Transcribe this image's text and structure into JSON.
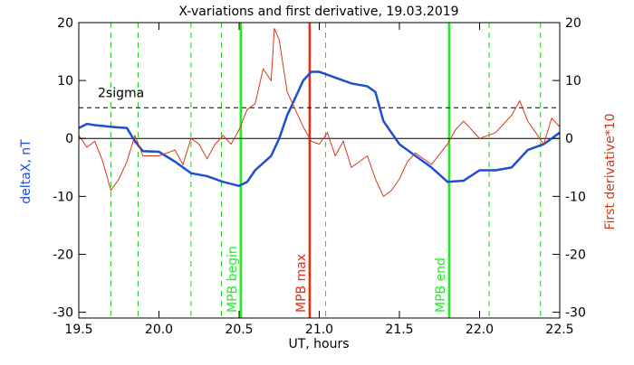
{
  "chart_data": {
    "type": "line",
    "title": "X-variations and first derivative, 19.03.2019",
    "xlabel": "UT, hours",
    "ylabel": "deltaX, nT",
    "y2label": "First derivative*10",
    "xlim": [
      19.5,
      22.5
    ],
    "xticks": [
      19.5,
      {
        "value": 20,
        "label": "20.0"
      },
      20.5,
      {
        "value": 21,
        "label": "21.0"
      },
      21.5,
      {
        "value": 22,
        "label": "22.0"
      },
      22.5
    ],
    "ylim": [
      -31,
      20
    ],
    "yticks": [
      -30,
      -20,
      -10,
      0,
      10,
      20
    ],
    "y2lim": [
      -31,
      20
    ],
    "y2ticks": [
      -30,
      -20,
      -10,
      0,
      10,
      20
    ],
    "series": [
      {
        "name": "deltaX, nT",
        "color": "#1f4fd0",
        "x": [
          19.5,
          19.55,
          19.6,
          19.7,
          19.8,
          19.85,
          19.9,
          20.0,
          20.1,
          20.2,
          20.3,
          20.4,
          20.5,
          20.55,
          20.6,
          20.7,
          20.75,
          20.8,
          20.85,
          20.9,
          20.95,
          21.0,
          21.1,
          21.2,
          21.3,
          21.35,
          21.4,
          21.5,
          21.6,
          21.7,
          21.8,
          21.9,
          22.0,
          22.1,
          22.2,
          22.3,
          22.4,
          22.5
        ],
        "values": [
          1.8,
          2.5,
          2.3,
          2,
          1.8,
          -0.5,
          -2.2,
          -2.3,
          -4,
          -6,
          -6.5,
          -7.5,
          -8.2,
          -7.5,
          -5.5,
          -3,
          0,
          4,
          7,
          10,
          11.5,
          11.5,
          10.5,
          9.5,
          9,
          8,
          3,
          -1,
          -3,
          -5,
          -7.5,
          -7.3,
          -5.5,
          -5.5,
          -5,
          -2,
          -1,
          1
        ]
      },
      {
        "name": "First derivative*10",
        "color": "#d03a1a",
        "axis": "y2",
        "x": [
          19.5,
          19.55,
          19.6,
          19.65,
          19.7,
          19.75,
          19.8,
          19.85,
          19.9,
          20.0,
          20.1,
          20.15,
          20.2,
          20.25,
          20.3,
          20.35,
          20.4,
          20.45,
          20.5,
          20.55,
          20.6,
          20.65,
          20.7,
          20.72,
          20.75,
          20.8,
          20.85,
          20.9,
          20.95,
          21.0,
          21.05,
          21.1,
          21.15,
          21.2,
          21.3,
          21.35,
          21.4,
          21.45,
          21.5,
          21.55,
          21.6,
          21.7,
          21.8,
          21.85,
          21.9,
          22.0,
          22.1,
          22.2,
          22.25,
          22.3,
          22.35,
          22.4,
          22.45,
          22.5
        ],
        "values": [
          0.5,
          -1.5,
          -0.5,
          -4,
          -9,
          -7,
          -4,
          0.5,
          -3,
          -3,
          -2,
          -4.5,
          0,
          -1,
          -3.5,
          -1,
          0.5,
          -1,
          1.5,
          5,
          6,
          12,
          10,
          19,
          17,
          8,
          5,
          2,
          -0.5,
          -1,
          1,
          -3,
          -0.5,
          -5,
          -3,
          -7,
          -10,
          -9,
          -7,
          -4,
          -2.5,
          -4.5,
          -1,
          1.5,
          3,
          0,
          1,
          4,
          6.5,
          3,
          1,
          -1,
          3.5,
          2
        ]
      }
    ],
    "hlines": [
      {
        "value": 5.3,
        "label": "2sigma",
        "color": "#000000",
        "style": "dashed"
      },
      {
        "value": 0,
        "color": "#000000",
        "style": "solid"
      }
    ],
    "vlines": [
      {
        "x": 19.7,
        "color": "#22cc22",
        "style": "dashed"
      },
      {
        "x": 19.87,
        "color": "#22cc22",
        "style": "dashed"
      },
      {
        "x": 20.2,
        "color": "#22cc22",
        "style": "dashed"
      },
      {
        "x": 20.39,
        "color": "#22cc22",
        "style": "dashed"
      },
      {
        "x": 20.51,
        "color": "#22ee22",
        "style": "solid",
        "label": "MPB begin"
      },
      {
        "x": 20.94,
        "color": "#ee2a10",
        "style": "solid",
        "label": "MPB max"
      },
      {
        "x": 21.04,
        "color": "#22cc22",
        "style": "dashed"
      },
      {
        "x": 21.81,
        "color": "#22ee22",
        "style": "solid",
        "label": "MPB end"
      },
      {
        "x": 22.06,
        "color": "#22cc22",
        "style": "dashed"
      },
      {
        "x": 22.38,
        "color": "#22cc22",
        "style": "dashed"
      }
    ]
  }
}
